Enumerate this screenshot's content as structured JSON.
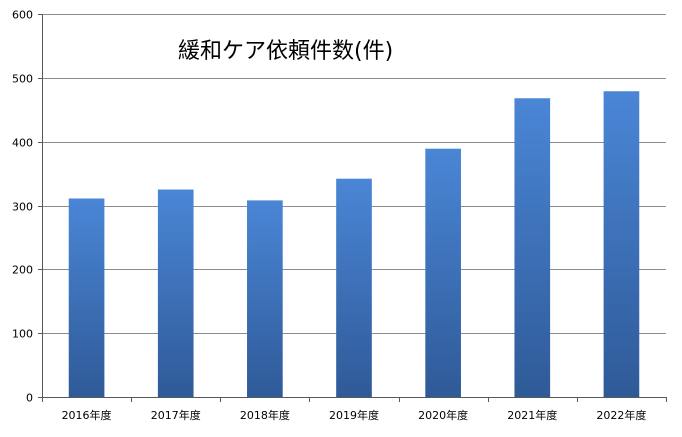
{
  "chart_data": {
    "type": "bar",
    "title": "緩和ケア依頼件数(件)",
    "xlabel": "",
    "ylabel": "",
    "categories": [
      "2016年度",
      "2017年度",
      "2018年度",
      "2019年度",
      "2020年度",
      "2021年度",
      "2022年度"
    ],
    "values": [
      311,
      325,
      308,
      342,
      389,
      468,
      479
    ],
    "ylim": [
      0,
      600
    ],
    "yticks": [
      0,
      100,
      200,
      300,
      400,
      500,
      600
    ],
    "grid": true,
    "legend": "none",
    "colors": {
      "bar_top": "#4a86d6",
      "bar_bottom": "#2f5a98",
      "grid": "#8c8c8c",
      "axis": "#595959"
    }
  }
}
